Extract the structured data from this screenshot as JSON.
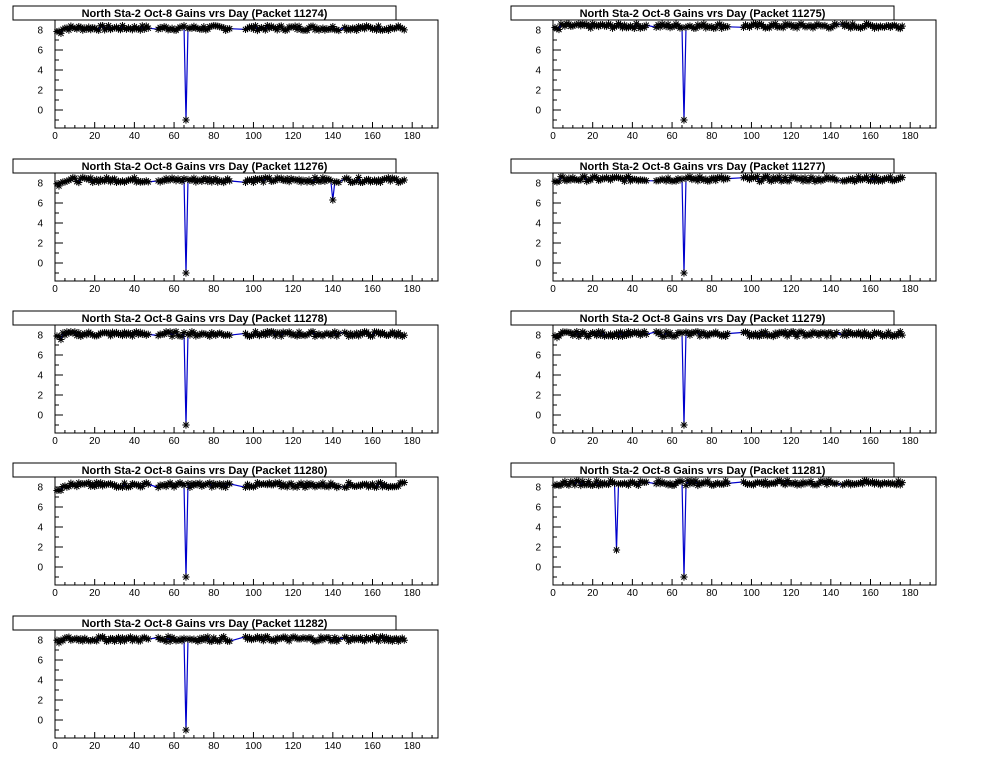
{
  "chart_data": [
    {
      "type": "line",
      "title": "North Sta-2 Oct-8 Gains vrs Day (Packet 11274)",
      "xlim": [
        0,
        193
      ],
      "ylim": [
        -1.8,
        9.0
      ],
      "xticks": [
        0,
        20,
        40,
        60,
        80,
        100,
        120,
        140,
        160,
        180
      ],
      "yticks": [
        0,
        2,
        4,
        6,
        8
      ],
      "xlabel": "",
      "ylabel": "",
      "baseline": 8.2,
      "x_range": [
        1,
        176
      ],
      "gap_after": [
        [
          47,
          52
        ],
        [
          88,
          96
        ],
        [
          143,
          146
        ]
      ],
      "dips": [
        {
          "x": 66,
          "y": -1.0
        }
      ],
      "series_color": "#0000cc",
      "marker": "asterisk"
    },
    {
      "type": "line",
      "title": "North Sta-2 Oct-8 Gains vrs Day (Packet 11275)",
      "xlim": [
        0,
        193
      ],
      "ylim": [
        -1.8,
        9.0
      ],
      "xticks": [
        0,
        20,
        40,
        60,
        80,
        100,
        120,
        140,
        160,
        180
      ],
      "yticks": [
        0,
        2,
        4,
        6,
        8
      ],
      "xlabel": "",
      "ylabel": "",
      "baseline": 8.4,
      "x_range": [
        1,
        176
      ],
      "gap_after": [
        [
          47,
          52
        ],
        [
          88,
          96
        ],
        [
          143,
          146
        ]
      ],
      "dips": [
        {
          "x": 66,
          "y": -1.0
        }
      ],
      "series_color": "#0000cc",
      "marker": "asterisk"
    },
    {
      "type": "line",
      "title": "North Sta-2 Oct-8 Gains vrs Day (Packet 11276)",
      "xlim": [
        0,
        193
      ],
      "ylim": [
        -1.8,
        9.0
      ],
      "xticks": [
        0,
        20,
        40,
        60,
        80,
        100,
        120,
        140,
        160,
        180
      ],
      "yticks": [
        0,
        2,
        4,
        6,
        8
      ],
      "xlabel": "",
      "ylabel": "",
      "baseline": 8.3,
      "x_range": [
        1,
        176
      ],
      "gap_after": [
        [
          47,
          52
        ],
        [
          88,
          96
        ],
        [
          143,
          146
        ]
      ],
      "dips": [
        {
          "x": 66,
          "y": -1.0
        },
        {
          "x": 140,
          "y": 6.3
        }
      ],
      "series_color": "#0000cc",
      "marker": "asterisk"
    },
    {
      "type": "line",
      "title": "North Sta-2 Oct-8 Gains vrs Day (Packet 11277)",
      "xlim": [
        0,
        193
      ],
      "ylim": [
        -1.8,
        9.0
      ],
      "xticks": [
        0,
        20,
        40,
        60,
        80,
        100,
        120,
        140,
        160,
        180
      ],
      "yticks": [
        0,
        2,
        4,
        6,
        8
      ],
      "xlabel": "",
      "ylabel": "",
      "baseline": 8.4,
      "x_range": [
        1,
        176
      ],
      "gap_after": [
        [
          47,
          52
        ],
        [
          88,
          96
        ],
        [
          143,
          146
        ]
      ],
      "dips": [
        {
          "x": 66,
          "y": -1.0
        }
      ],
      "series_color": "#0000cc",
      "marker": "asterisk"
    },
    {
      "type": "line",
      "title": "North Sta-2 Oct-8 Gains vrs Day (Packet 11278)",
      "xlim": [
        0,
        193
      ],
      "ylim": [
        -1.8,
        9.0
      ],
      "xticks": [
        0,
        20,
        40,
        60,
        80,
        100,
        120,
        140,
        160,
        180
      ],
      "yticks": [
        0,
        2,
        4,
        6,
        8
      ],
      "xlabel": "",
      "ylabel": "",
      "baseline": 8.1,
      "x_range": [
        1,
        176
      ],
      "gap_after": [
        [
          47,
          52
        ],
        [
          88,
          96
        ],
        [
          143,
          146
        ]
      ],
      "dips": [
        {
          "x": 66,
          "y": -1.0
        }
      ],
      "series_color": "#0000cc",
      "marker": "asterisk"
    },
    {
      "type": "line",
      "title": "North Sta-2 Oct-8 Gains vrs Day (Packet 11279)",
      "xlim": [
        0,
        193
      ],
      "ylim": [
        -1.8,
        9.0
      ],
      "xticks": [
        0,
        20,
        40,
        60,
        80,
        100,
        120,
        140,
        160,
        180
      ],
      "yticks": [
        0,
        2,
        4,
        6,
        8
      ],
      "xlabel": "",
      "ylabel": "",
      "baseline": 8.1,
      "x_range": [
        1,
        176
      ],
      "gap_after": [
        [
          47,
          52
        ],
        [
          88,
          96
        ],
        [
          143,
          146
        ]
      ],
      "dips": [
        {
          "x": 66,
          "y": -1.0
        }
      ],
      "series_color": "#0000cc",
      "marker": "asterisk"
    },
    {
      "type": "line",
      "title": "North Sta-2 Oct-8 Gains vrs Day (Packet 11280)",
      "xlim": [
        0,
        193
      ],
      "ylim": [
        -1.8,
        9.0
      ],
      "xticks": [
        0,
        20,
        40,
        60,
        80,
        100,
        120,
        140,
        160,
        180
      ],
      "yticks": [
        0,
        2,
        4,
        6,
        8
      ],
      "xlabel": "",
      "ylabel": "",
      "baseline": 8.2,
      "x_range": [
        1,
        176
      ],
      "gap_after": [
        [
          47,
          52
        ],
        [
          88,
          96
        ],
        [
          143,
          146
        ]
      ],
      "dips": [
        {
          "x": 66,
          "y": -1.0
        }
      ],
      "series_color": "#0000cc",
      "marker": "asterisk"
    },
    {
      "type": "line",
      "title": "North Sta-2 Oct-8 Gains vrs Day (Packet 11281)",
      "xlim": [
        0,
        193
      ],
      "ylim": [
        -1.8,
        9.0
      ],
      "xticks": [
        0,
        20,
        40,
        60,
        80,
        100,
        120,
        140,
        160,
        180
      ],
      "yticks": [
        0,
        2,
        4,
        6,
        8
      ],
      "xlabel": "",
      "ylabel": "",
      "baseline": 8.4,
      "x_range": [
        1,
        176
      ],
      "gap_after": [
        [
          47,
          52
        ],
        [
          88,
          96
        ],
        [
          143,
          146
        ]
      ],
      "dips": [
        {
          "x": 32,
          "y": 1.7
        },
        {
          "x": 66,
          "y": -1.0
        }
      ],
      "series_color": "#0000cc",
      "marker": "asterisk"
    },
    {
      "type": "line",
      "title": "North Sta-2 Oct-8 Gains vrs Day (Packet 11282)",
      "xlim": [
        0,
        193
      ],
      "ylim": [
        -1.8,
        9.0
      ],
      "xticks": [
        0,
        20,
        40,
        60,
        80,
        100,
        120,
        140,
        160,
        180
      ],
      "yticks": [
        0,
        2,
        4,
        6,
        8
      ],
      "xlabel": "",
      "ylabel": "",
      "baseline": 8.1,
      "x_range": [
        1,
        176
      ],
      "gap_after": [
        [
          47,
          52
        ],
        [
          88,
          96
        ],
        [
          143,
          146
        ]
      ],
      "dips": [
        {
          "x": 66,
          "y": -1.0
        }
      ],
      "series_color": "#0000cc",
      "marker": "asterisk"
    }
  ]
}
